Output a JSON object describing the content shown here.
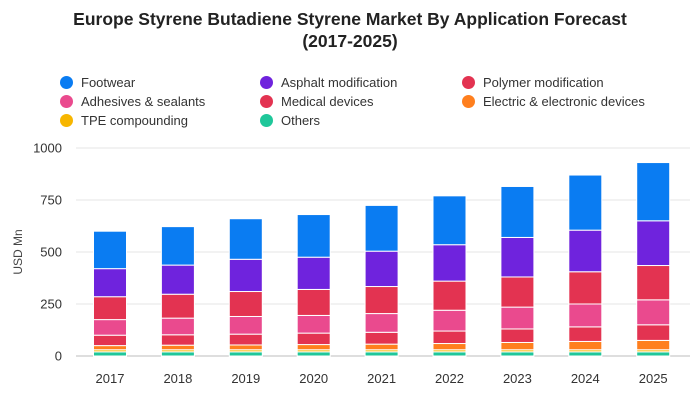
{
  "chart_data": {
    "type": "bar",
    "stacked": true,
    "title_line1": "Europe Styrene Butadiene Styrene Market By Application Forecast",
    "title_line2": "(2017-2025)",
    "ylabel": "USD Mn",
    "xlabel": "",
    "ylim": [
      0,
      1000
    ],
    "yticks": [
      "0",
      "250",
      "500",
      "750",
      "1000"
    ],
    "ytick_values": [
      0,
      250,
      500,
      750,
      1000
    ],
    "grid": true,
    "legend_position": "top",
    "categories": [
      "2017",
      "2018",
      "2019",
      "2020",
      "2021",
      "2022",
      "2023",
      "2024",
      "2025"
    ],
    "series": [
      {
        "name": "Others",
        "color": "#1fc79a",
        "values": [
          20,
          20,
          20,
          20,
          20,
          20,
          20,
          20,
          20
        ]
      },
      {
        "name": "TPE compounding",
        "color": "#f7b600",
        "values": [
          10,
          10,
          10,
          10,
          10,
          10,
          10,
          10,
          10
        ]
      },
      {
        "name": "Electric & electronic devices",
        "color": "#ff7f1e",
        "values": [
          20,
          22,
          23,
          25,
          27,
          30,
          35,
          40,
          45
        ]
      },
      {
        "name": "Medical devices",
        "color": "#e33351",
        "values": [
          50,
          50,
          52,
          55,
          57,
          60,
          65,
          70,
          75
        ]
      },
      {
        "name": "Adhesives & sealants",
        "color": "#ea4a8e",
        "values": [
          75,
          80,
          85,
          85,
          90,
          100,
          105,
          110,
          120
        ]
      },
      {
        "name": "Polymer modification",
        "color": "#e33351",
        "values": [
          110,
          115,
          120,
          125,
          130,
          140,
          145,
          155,
          165
        ]
      },
      {
        "name": "Asphalt modification",
        "color": "#6f23dd",
        "values": [
          135,
          140,
          155,
          155,
          170,
          175,
          190,
          200,
          215
        ]
      },
      {
        "name": "Footwear",
        "color": "#0a7cf2",
        "values": [
          180,
          185,
          195,
          205,
          220,
          235,
          245,
          265,
          280
        ]
      }
    ],
    "legend": [
      {
        "label": "Footwear",
        "color": "#0a7cf2"
      },
      {
        "label": "Asphalt modification",
        "color": "#6f23dd"
      },
      {
        "label": "Polymer modification",
        "color": "#e33351"
      },
      {
        "label": "Adhesives & sealants",
        "color": "#ea4a8e"
      },
      {
        "label": "Medical devices",
        "color": "#e33351"
      },
      {
        "label": "Electric & electronic devices",
        "color": "#ff7f1e"
      },
      {
        "label": "TPE compounding",
        "color": "#f7b600"
      },
      {
        "label": "Others",
        "color": "#1fc79a"
      }
    ]
  }
}
